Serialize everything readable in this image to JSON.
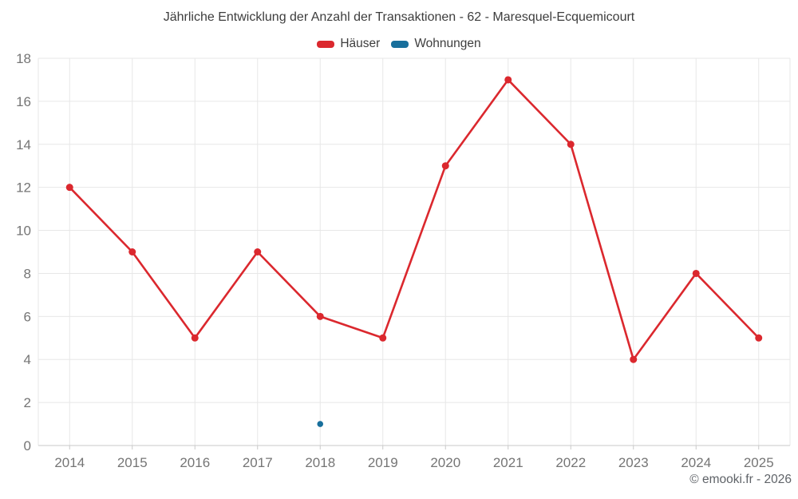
{
  "footer": {
    "copyright": "© emooki.fr - 2026"
  },
  "colors": {
    "grid": "#e7e7e7",
    "axis": "#c9c9c9",
    "title": "#3d3d3d",
    "tick_label": "#757575",
    "copyright": "#5f6368",
    "hauser": "#db282e",
    "wohnungen": "#186f9c"
  },
  "chart_data": {
    "type": "line",
    "title": "Jährliche Entwicklung der Anzahl der Transaktionen - 62 - Maresquel-Ecquemicourt",
    "categories": [
      "2014",
      "2015",
      "2016",
      "2017",
      "2018",
      "2019",
      "2020",
      "2021",
      "2022",
      "2023",
      "2024",
      "2025"
    ],
    "series": [
      {
        "name": "Häuser",
        "color": "#db282e",
        "values": [
          12,
          9,
          5,
          9,
          6,
          5,
          13,
          17,
          14,
          4,
          8,
          5
        ],
        "marker_radius": 4.5,
        "line_width": 2.6
      },
      {
        "name": "Wohnungen",
        "color": "#186f9c",
        "values": [
          null,
          null,
          null,
          null,
          1,
          null,
          null,
          null,
          null,
          null,
          null,
          null
        ],
        "marker_radius": 3.8,
        "line_width": 0
      }
    ],
    "xlabel": "",
    "ylabel": "",
    "ylim": [
      0,
      18
    ],
    "ytick_step": 2,
    "grid": true,
    "legend_position": "top"
  }
}
